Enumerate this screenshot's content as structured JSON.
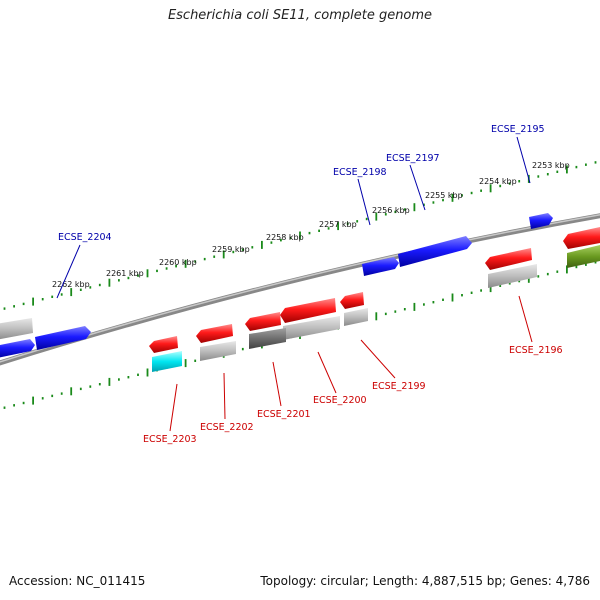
{
  "title": "Escherichia coli SE11, complete genome",
  "footer": {
    "accession": "Accession: NC_011415",
    "summary": "Topology: circular; Length: 4,887,515 bp; Genes: 4,786"
  },
  "colors": {
    "forward_gene": "#1010e8",
    "reverse_gene": "#ee1010",
    "label_forward": "#0000aa",
    "label_reverse": "#cc0000",
    "tick": "#1a8a1a",
    "backbone": "#888888",
    "grey_feature": "#b8b8b8",
    "dark_feature": "#707070",
    "cyan_feature": "#00e0e8",
    "olive_feature": "#6a9a20"
  },
  "scale_labels": [
    "2253 kbp",
    "2254 kbp",
    "2255 kbp",
    "2256 kbp",
    "2257 kbp",
    "2258 kbp",
    "2259 kbp",
    "2260 kbp",
    "2261 kbp",
    "2262 kbp"
  ],
  "gene_labels_forward": [
    "ECSE_2195",
    "ECSE_2197",
    "ECSE_2198",
    "ECSE_2204"
  ],
  "gene_labels_reverse": [
    "ECSE_2196",
    "ECSE_2199",
    "ECSE_2200",
    "ECSE_2201",
    "ECSE_2202",
    "ECSE_2203"
  ]
}
